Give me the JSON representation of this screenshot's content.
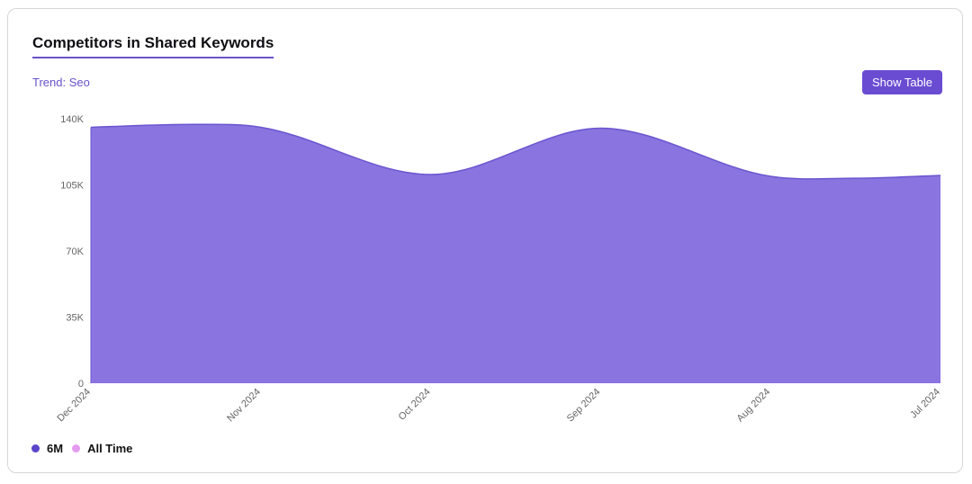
{
  "card": {
    "title": "Competitors in Shared Keywords",
    "trend_label": "Trend: Seo",
    "show_table_label": "Show Table"
  },
  "legend": {
    "items": [
      {
        "label": "6M",
        "color": "#5b45c9"
      },
      {
        "label": "All Time",
        "color": "#e59bf0"
      }
    ]
  },
  "chart_data": {
    "type": "area",
    "title": "",
    "xlabel": "",
    "ylabel": "",
    "categories": [
      "Dec 2024",
      "Nov 2024",
      "Oct 2024",
      "Sep 2024",
      "Aug 2024",
      "Jul 2024"
    ],
    "y_tick_labels": [
      "0",
      "35K",
      "70K",
      "105K",
      "140K"
    ],
    "y_ticks": [
      0,
      35000,
      70000,
      105000,
      140000
    ],
    "ylim": [
      0,
      140000
    ],
    "grid": false,
    "series": [
      {
        "name": "6M",
        "color": "#8a74e0",
        "stroke": "#6a55cf",
        "x": [
          "Dec 2024",
          "Dec 2024–Nov 2024",
          "Nov 2024",
          "Oct 2024",
          "Sep 2024",
          "Aug 2024",
          "Aug 2024–Jul 2024",
          "Jul 2024"
        ],
        "points": [
          {
            "pos": 0.0,
            "y": 135500
          },
          {
            "pos": 0.6,
            "y": 137000
          },
          {
            "pos": 1.0,
            "y": 135500
          },
          {
            "pos": 2.0,
            "y": 110500
          },
          {
            "pos": 3.0,
            "y": 135000
          },
          {
            "pos": 4.0,
            "y": 109500
          },
          {
            "pos": 4.5,
            "y": 108500
          },
          {
            "pos": 5.0,
            "y": 110000
          }
        ]
      }
    ]
  }
}
